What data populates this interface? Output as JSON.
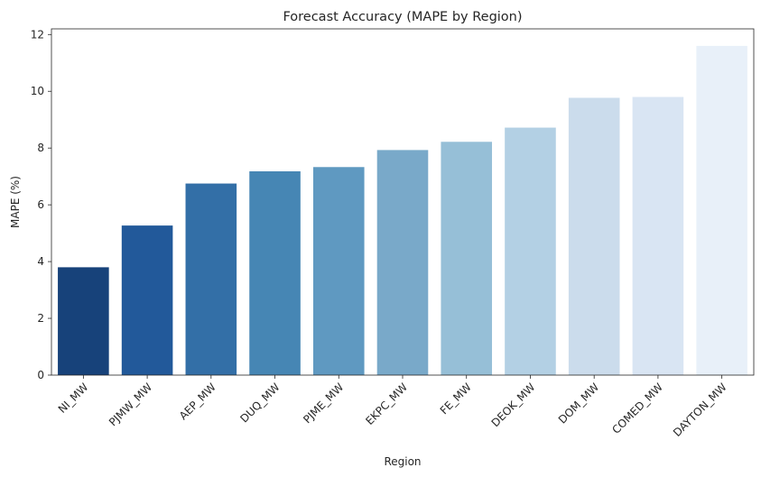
{
  "chart_data": {
    "type": "bar",
    "title": "Forecast Accuracy (MAPE by Region)",
    "xlabel": "Region",
    "ylabel": "MAPE (%)",
    "categories": [
      "NI_MW",
      "PJMW_MW",
      "AEP_MW",
      "DUQ_MW",
      "PJME_MW",
      "EKPC_MW",
      "FE_MW",
      "DEOK_MW",
      "DOM_MW",
      "COMED_MW",
      "DAYTON_MW"
    ],
    "values": [
      3.8,
      5.27,
      6.75,
      7.18,
      7.33,
      7.93,
      8.22,
      8.72,
      9.77,
      9.8,
      11.6
    ],
    "colors": [
      "#17427a",
      "#22599a",
      "#336fa7",
      "#4686b4",
      "#5f99c1",
      "#79a9c9",
      "#96bfd7",
      "#b3d0e4",
      "#cbdcec",
      "#d9e5f3",
      "#e8f0f9"
    ],
    "ylim": [
      0,
      12.2
    ],
    "yticks": [
      0,
      2,
      4,
      6,
      8,
      10,
      12
    ],
    "grid": false,
    "legend": "none"
  }
}
